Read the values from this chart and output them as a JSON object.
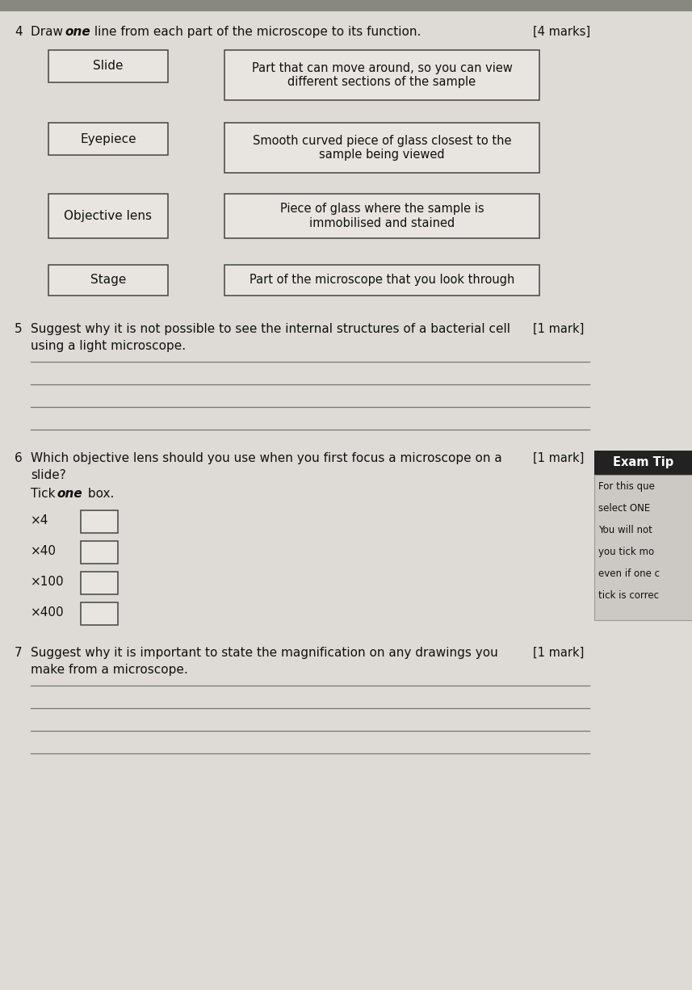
{
  "bg_color": "#c8c4bf",
  "page_bg": "#dedad5",
  "top_strip_color": "#888880",
  "parts": [
    "Slide",
    "Eyepiece",
    "Objective lens",
    "Stage"
  ],
  "functions": [
    "Part that can move around, so you can view\ndifferent sections of the sample",
    "Smooth curved piece of glass closest to the\nsample being viewed",
    "Piece of glass where the sample is\nimmobilised and stained",
    "Part of the microscope that you look through"
  ],
  "q4_num": "4",
  "q4_intro": "Draw ",
  "q4_bold": "one",
  "q4_rest": " line from each part of the microscope to its function.",
  "q4_marks": "[4 marks]",
  "q5_num": "5",
  "q5_text": "Suggest why it is not possible to see the internal structures of a bacterial cell\nusing a light microscope.",
  "q5_marks": "[1 mark]",
  "q6_num": "6",
  "q6_text": "Which objective lens should you use when you first focus a microscope on a\nslide?",
  "q6_marks": "[1 mark]",
  "q6_tick_pre": "Tick ",
  "q6_tick_bold": "one",
  "q6_tick_post": " box.",
  "q6_options": [
    "×4",
    "×40",
    "×100",
    "×400"
  ],
  "exam_tip_title": "Exam Tip",
  "exam_tip_lines": [
    "For this que",
    "select ONE",
    "You will not",
    "you tick mo",
    "even if one c",
    "tick is correc"
  ],
  "q7_num": "7",
  "q7_text": "Suggest why it is important to state the magnification on any drawings you\nmake from a microscope.",
  "q7_marks": "[1 mark]",
  "box_face": "#e8e4df",
  "box_edge": "#444444",
  "text_color": "#111111",
  "line_color": "#777777",
  "exam_tip_bg": "#222222",
  "exam_tip_text": "#ffffff",
  "exam_tip_body_bg": "#ccc8c3"
}
